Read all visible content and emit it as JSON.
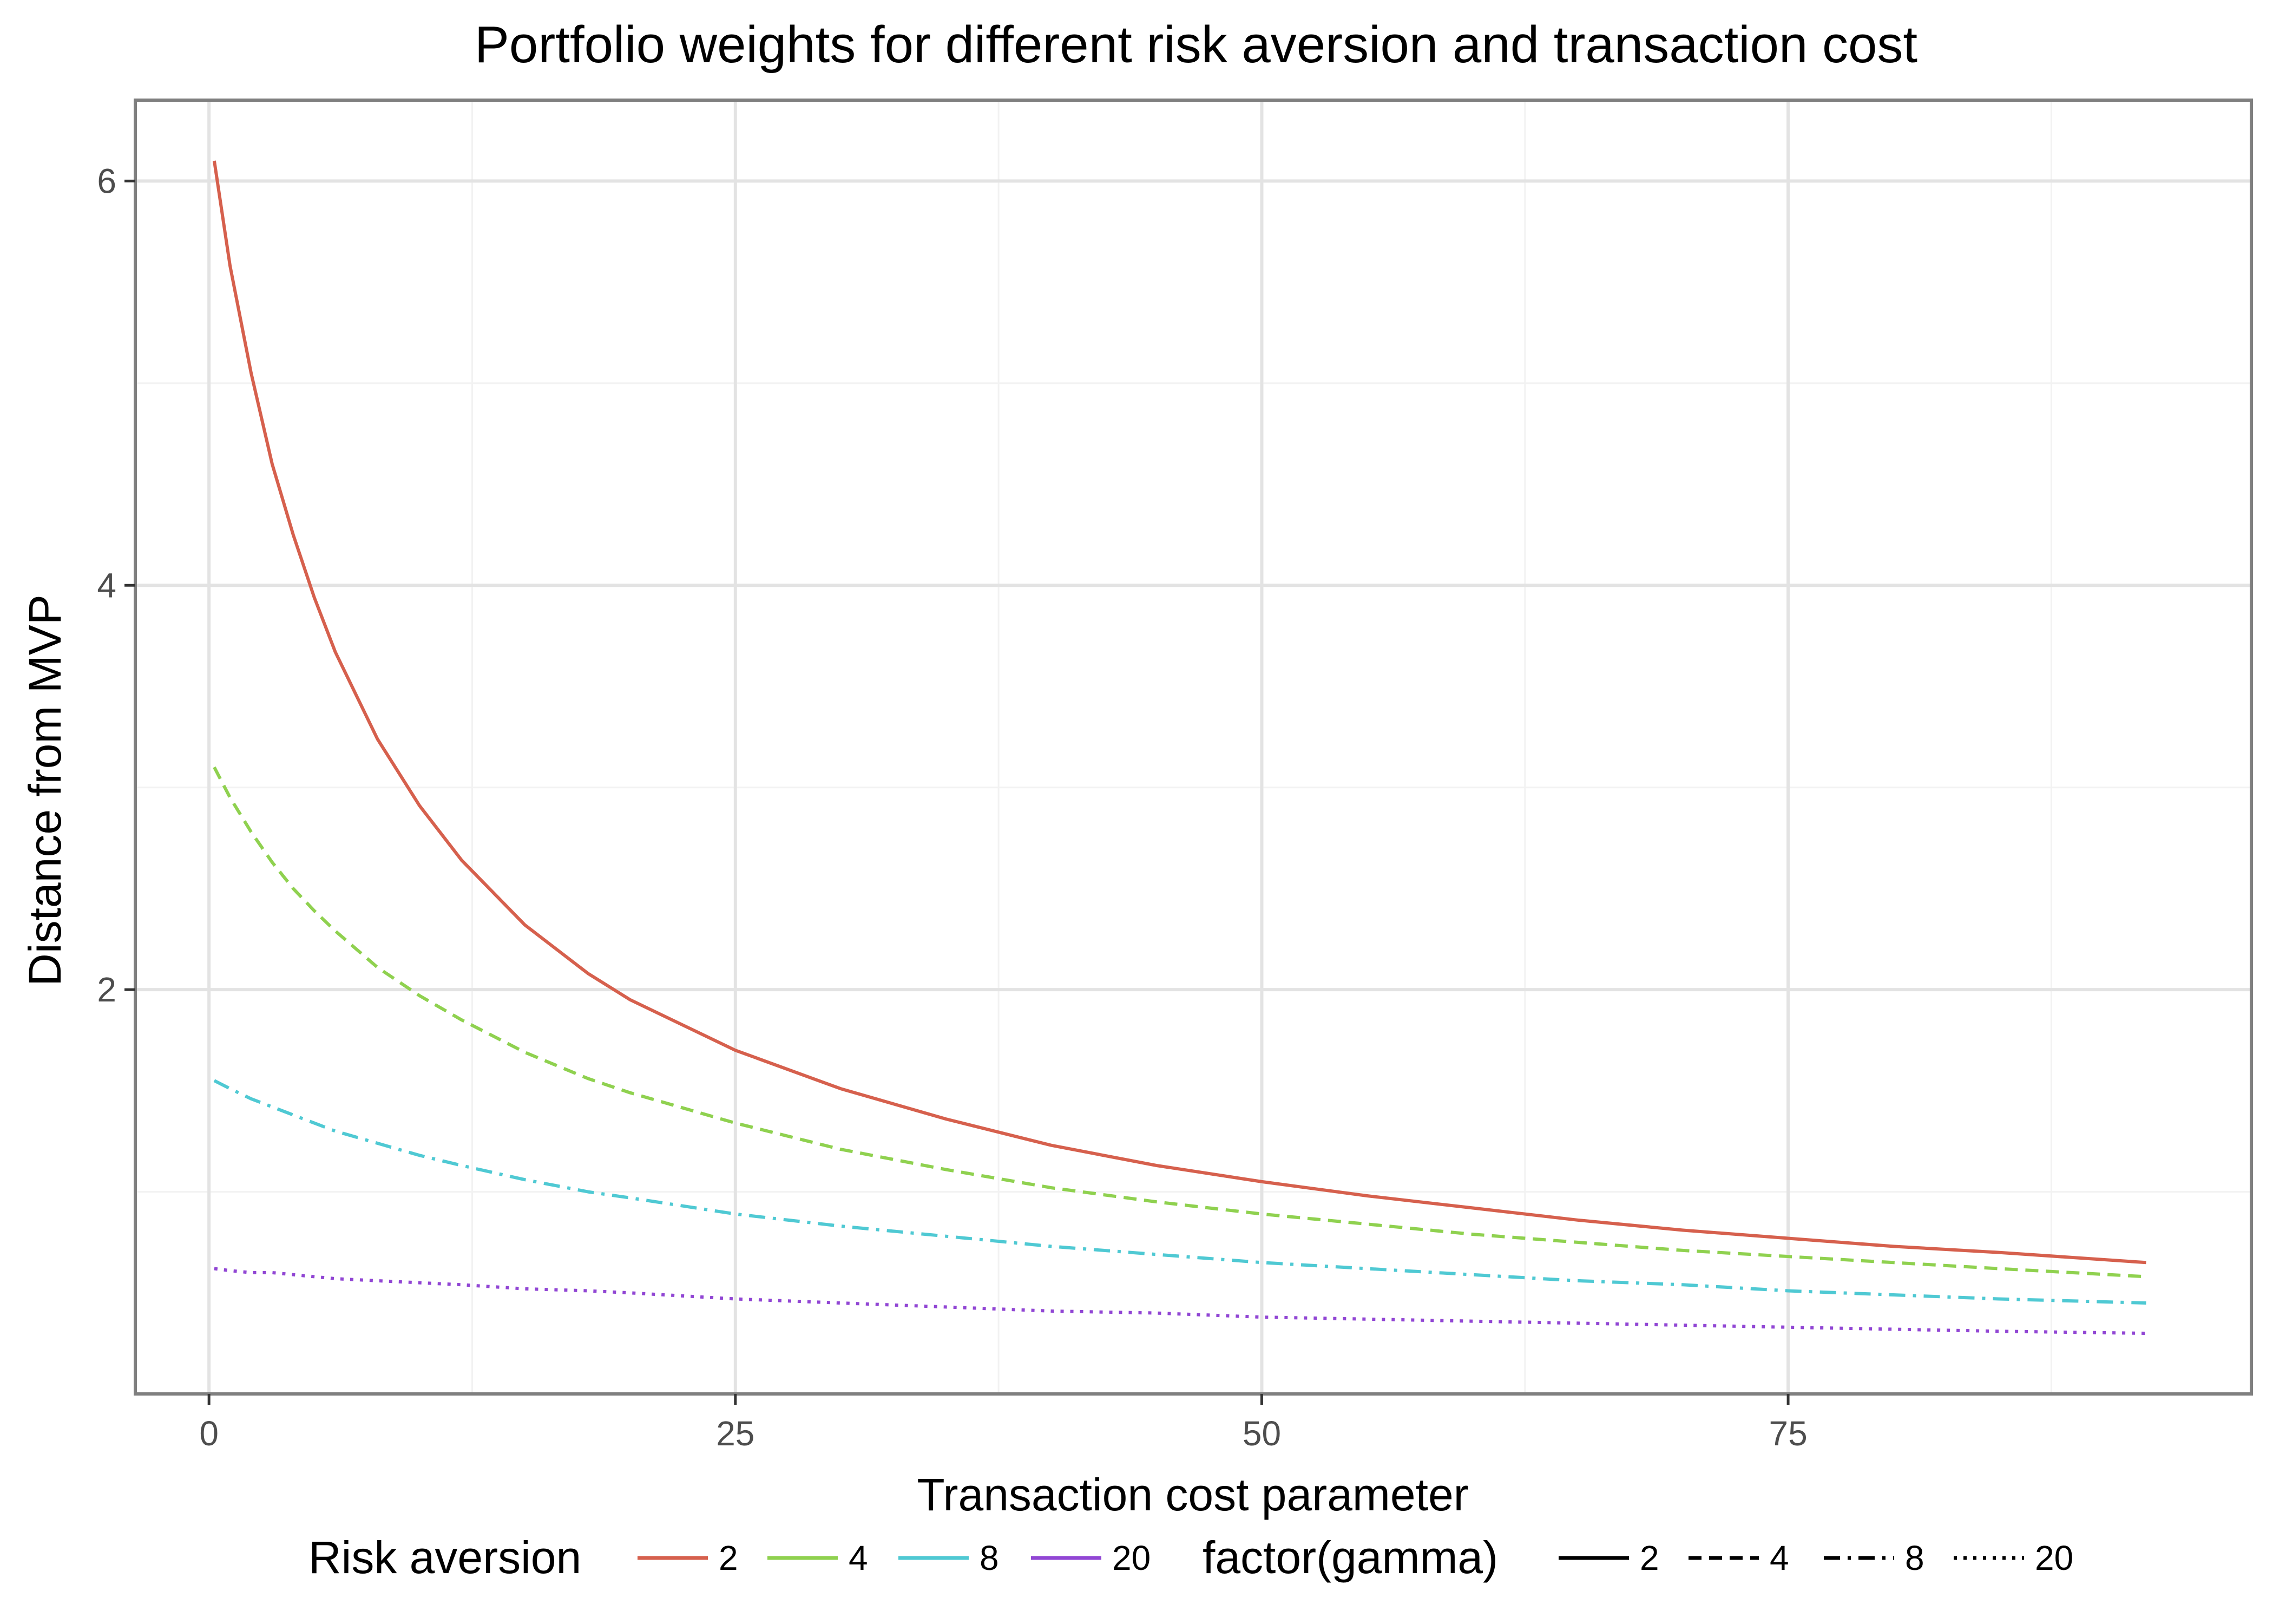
{
  "chart_data": {
    "type": "line",
    "title": "Portfolio weights for different risk aversion and transaction cost",
    "xlabel": "Transaction cost parameter",
    "ylabel": "Distance from MVP",
    "xlim": [
      -3.5,
      97
    ],
    "ylim": [
      0.0,
      6.4
    ],
    "xticks": [
      0,
      25,
      50,
      75
    ],
    "yticks": [
      2,
      4,
      6
    ],
    "grid": true,
    "x": [
      0.25,
      1,
      2,
      3,
      4,
      5,
      6,
      8,
      10,
      12,
      15,
      18,
      20,
      25,
      30,
      35,
      40,
      45,
      50,
      55,
      60,
      65,
      70,
      75,
      80,
      85,
      92
    ],
    "series": [
      {
        "name": "2",
        "color": "#d6604d",
        "linetype": "solid",
        "values": [
          6.1,
          5.58,
          5.05,
          4.6,
          4.25,
          3.94,
          3.67,
          3.24,
          2.91,
          2.64,
          2.32,
          2.08,
          1.95,
          1.7,
          1.51,
          1.36,
          1.23,
          1.13,
          1.05,
          0.98,
          0.92,
          0.86,
          0.81,
          0.77,
          0.73,
          0.7,
          0.65
        ]
      },
      {
        "name": "4",
        "color": "#8fd14f",
        "linetype": "dashed",
        "values": [
          3.1,
          2.95,
          2.78,
          2.63,
          2.5,
          2.39,
          2.29,
          2.11,
          1.97,
          1.85,
          1.69,
          1.56,
          1.49,
          1.34,
          1.21,
          1.11,
          1.02,
          0.95,
          0.89,
          0.84,
          0.79,
          0.75,
          0.71,
          0.68,
          0.65,
          0.62,
          0.58
        ]
      },
      {
        "name": "8",
        "color": "#4fc9d3",
        "linetype": "dashdot",
        "values": [
          1.55,
          1.51,
          1.46,
          1.42,
          1.38,
          1.34,
          1.3,
          1.24,
          1.18,
          1.13,
          1.06,
          1.0,
          0.97,
          0.89,
          0.83,
          0.78,
          0.73,
          0.69,
          0.65,
          0.62,
          0.59,
          0.56,
          0.54,
          0.51,
          0.49,
          0.47,
          0.45
        ]
      },
      {
        "name": "20",
        "color": "#9146d4",
        "linetype": "dotted",
        "values": [
          0.62,
          0.61,
          0.6,
          0.6,
          0.59,
          0.58,
          0.57,
          0.56,
          0.55,
          0.54,
          0.52,
          0.51,
          0.5,
          0.47,
          0.45,
          0.43,
          0.41,
          0.4,
          0.38,
          0.37,
          0.36,
          0.35,
          0.34,
          0.33,
          0.32,
          0.31,
          0.3
        ]
      }
    ],
    "legend": {
      "placement": "bottom",
      "color_title": "Risk aversion",
      "linetype_title": "factor(gamma)",
      "entries": [
        "2",
        "4",
        "8",
        "20"
      ],
      "linetypes": [
        "solid",
        "dashed",
        "dashdot",
        "dotted"
      ]
    }
  }
}
